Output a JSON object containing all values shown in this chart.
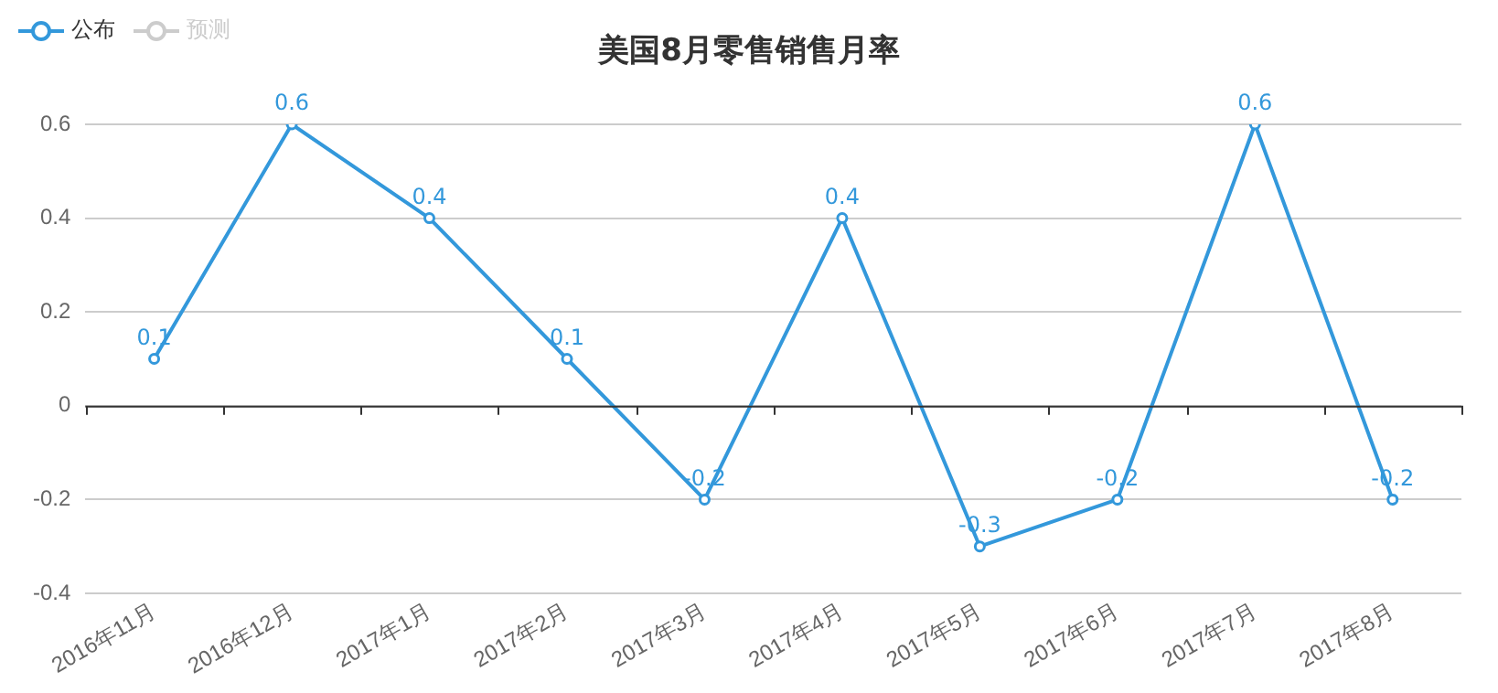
{
  "chart_data": {
    "type": "line",
    "title": "美国8月零售销售月率",
    "categories": [
      "2016年11月",
      "2016年12月",
      "2017年1月",
      "2017年2月",
      "2017年3月",
      "2017年4月",
      "2017年5月",
      "2017年6月",
      "2017年7月",
      "2017年8月"
    ],
    "series": [
      {
        "name": "公布",
        "color": "#3398db",
        "values": [
          0.1,
          0.6,
          0.4,
          0.1,
          -0.2,
          0.4,
          -0.3,
          -0.2,
          0.6,
          -0.2
        ]
      },
      {
        "name": "预测",
        "color": "#cccccc",
        "values": [
          null,
          null,
          null,
          null,
          null,
          null,
          null,
          null,
          null,
          null
        ]
      }
    ],
    "ylim": [
      -0.4,
      0.6
    ],
    "yticks": [
      -0.4,
      -0.2,
      0,
      0.2,
      0.4,
      0.6
    ],
    "grid": "y",
    "legend": "top left",
    "marker": "circle",
    "line_style": "solid",
    "data_labels": true
  }
}
